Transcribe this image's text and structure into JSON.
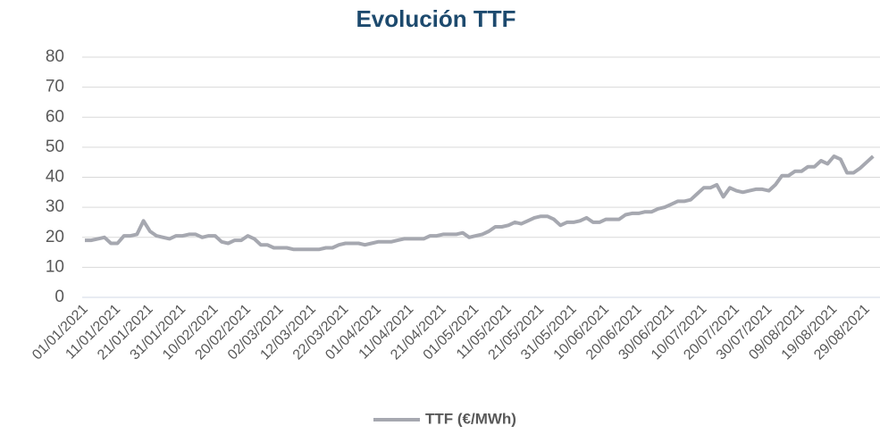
{
  "chart_data": {
    "type": "line",
    "title": "Evolución TTF",
    "categories": [
      "01/01/2021",
      null,
      null,
      null,
      null,
      "11/01/2021",
      null,
      null,
      null,
      null,
      "21/01/2021",
      null,
      null,
      null,
      null,
      "31/01/2021",
      null,
      null,
      null,
      null,
      "10/02/2021",
      null,
      null,
      null,
      null,
      "20/02/2021",
      null,
      null,
      null,
      null,
      "02/03/2021",
      null,
      null,
      null,
      null,
      "12/03/2021",
      null,
      null,
      null,
      null,
      "22/03/2021",
      null,
      null,
      null,
      null,
      "01/04/2021",
      null,
      null,
      null,
      null,
      "11/04/2021",
      null,
      null,
      null,
      null,
      "21/04/2021",
      null,
      null,
      null,
      null,
      "01/05/2021",
      null,
      null,
      null,
      null,
      "11/05/2021",
      null,
      null,
      null,
      null,
      "21/05/2021",
      null,
      null,
      null,
      null,
      "31/05/2021",
      null,
      null,
      null,
      null,
      "10/06/2021",
      null,
      null,
      null,
      null,
      "20/06/2021",
      null,
      null,
      null,
      null,
      "30/06/2021",
      null,
      null,
      null,
      null,
      "10/07/2021",
      null,
      null,
      null,
      null,
      "20/07/2021",
      null,
      null,
      null,
      null,
      "30/07/2021",
      null,
      null,
      null,
      null,
      "09/08/2021",
      null,
      null,
      null,
      null,
      "19/08/2021",
      null,
      null,
      null,
      null,
      "29/08/2021",
      null
    ],
    "series": [
      {
        "name": "TTF (€/MWh)",
        "color": "#a6a8b0",
        "values": [
          19,
          19,
          19.5,
          20,
          18,
          18,
          20.5,
          20.5,
          21,
          25.5,
          22,
          20.5,
          20,
          19.5,
          20.5,
          20.5,
          21,
          21,
          20,
          20.5,
          20.5,
          18.5,
          18,
          19,
          19,
          20.5,
          19.5,
          17.5,
          17.5,
          16.5,
          16.5,
          16.5,
          16,
          16,
          16,
          16,
          16,
          16.5,
          16.5,
          17.5,
          18,
          18,
          18,
          17.5,
          18,
          18.5,
          18.5,
          18.5,
          19,
          19.5,
          19.5,
          19.5,
          19.5,
          20.5,
          20.5,
          21,
          21,
          21,
          21.5,
          20,
          20.5,
          21,
          22,
          23.5,
          23.5,
          24,
          25,
          24.5,
          25.5,
          26.5,
          27,
          27,
          26,
          24,
          25,
          25,
          25.5,
          26.5,
          25,
          25,
          26,
          26,
          26,
          27.5,
          28,
          28,
          28.5,
          28.5,
          29.5,
          30,
          31,
          32,
          32,
          32.5,
          34.5,
          36.5,
          36.5,
          37.5,
          33.5,
          36.5,
          35.5,
          35,
          35.5,
          36,
          36,
          35.5,
          37.5,
          40.5,
          40.5,
          42,
          42,
          43.5,
          43.5,
          45.5,
          44.5,
          47,
          46,
          41.5,
          41.5,
          43,
          45,
          47
        ]
      }
    ],
    "ylim": [
      0,
      80
    ],
    "yticks": [
      0,
      10,
      20,
      30,
      40,
      50,
      60,
      70,
      80
    ],
    "grid": true
  }
}
